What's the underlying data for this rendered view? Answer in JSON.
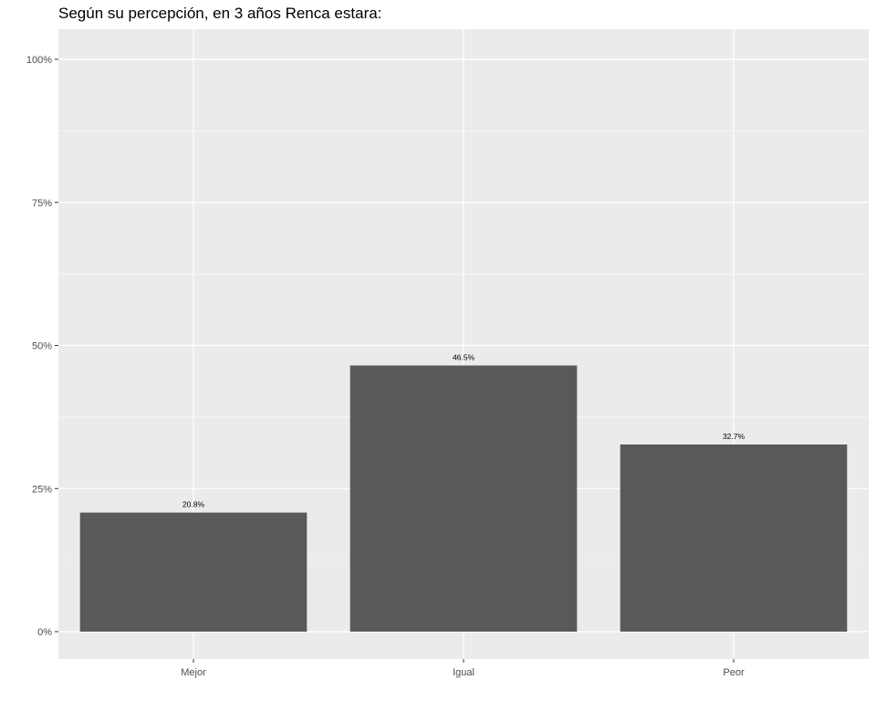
{
  "chart_data": {
    "type": "bar",
    "title": "Según su percepción, en 3 años Renca estara:",
    "xlabel": "",
    "ylabel": "",
    "categories": [
      "Mejor",
      "Igual",
      "Peor"
    ],
    "values": [
      20.8,
      46.5,
      32.7
    ],
    "data_labels": [
      "20.8%",
      "46.5%",
      "32.7%"
    ],
    "ylim": [
      -5,
      105
    ],
    "y_ticks": [
      0,
      25,
      50,
      75,
      100
    ],
    "y_tick_labels": [
      "0%",
      "25%",
      "50%",
      "75%",
      "100%"
    ],
    "y_minor_ticks": [
      12.5,
      37.5,
      62.5,
      87.5
    ],
    "grid": true,
    "legend": "none",
    "colors": {
      "bar": "#595959",
      "panel": "#ebebeb",
      "grid": "#ffffff",
      "tick_label": "#4d4d4d",
      "tick_mark": "#333333"
    }
  }
}
